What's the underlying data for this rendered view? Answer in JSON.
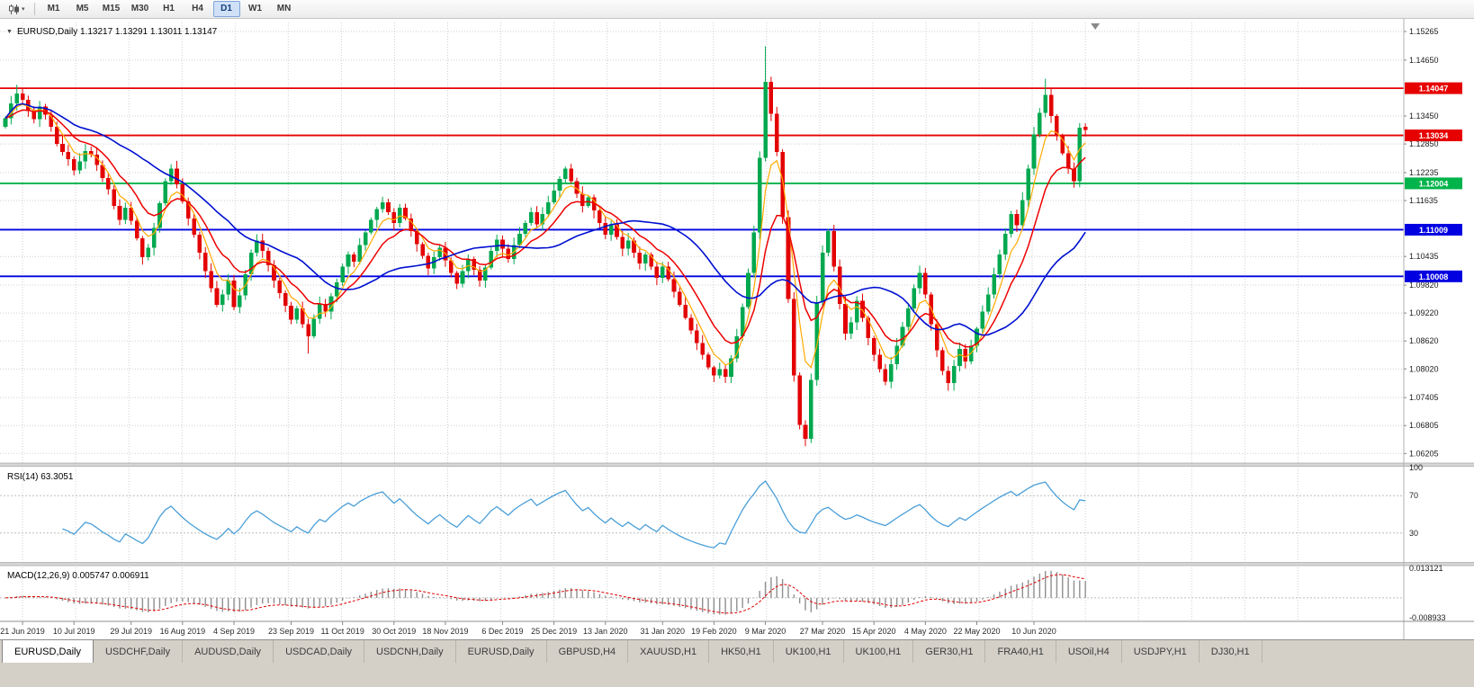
{
  "toolbar": {
    "chart_type_icon": "candlestick-chart",
    "dropdown_caret": "▾",
    "timeframes": [
      "M1",
      "M5",
      "M15",
      "M30",
      "H1",
      "H4",
      "D1",
      "W1",
      "MN"
    ],
    "active_timeframe": "D1"
  },
  "chart": {
    "one_click_icon": "▼",
    "title": "EURUSD,Daily 1.13217 1.13291 1.13011 1.13147",
    "rsi_label": "RSI(14) 63.3051",
    "macd_label": "MACD(12,26,9) 0.005747 0.006911",
    "colors": {
      "bull": "#00a84f",
      "bear": "#e30000",
      "ma_fast": "#ffaa00",
      "ma_mid": "#ee0000",
      "ma_slow": "#0010d0",
      "rsi": "#4a9fd8",
      "macd_hist": "#8f8f8f",
      "macd_signal": "#e00000",
      "grid": "#cfcfcf",
      "axis": "#8f8f8f",
      "line_red": "#e60000",
      "line_green": "#00b34a",
      "line_blue": "#0000e1"
    }
  },
  "chart_data": {
    "type": "candlestick",
    "symbol": "EURUSD",
    "timeframe": "Daily",
    "current_bar_ohlc": {
      "open": 1.13217,
      "high": 1.13291,
      "low": 1.13011,
      "close": 1.13147
    },
    "first_open": 1.1322,
    "y_axis_ticks": [
      "1.15265",
      "1.14650",
      "1.13450",
      "1.12850",
      "1.12235",
      "1.11635",
      "1.10435",
      "1.09820",
      "1.09220",
      "1.08620",
      "1.08020",
      "1.07405",
      "1.06805",
      "1.06205"
    ],
    "x_axis_dates": [
      "21 Jun 2019",
      "10 Jul 2019",
      "29 Jul 2019",
      "16 Aug 2019",
      "4 Sep 2019",
      "23 Sep 2019",
      "11 Oct 2019",
      "30 Oct 2019",
      "18 Nov 2019",
      "6 Dec 2019",
      "25 Dec 2019",
      "13 Jan 2020",
      "31 Jan 2020",
      "19 Feb 2020",
      "9 Mar 2020",
      "27 Mar 2020",
      "15 Apr 2020",
      "4 May 2020",
      "22 May 2020",
      "10 Jun 2020"
    ],
    "horizontal_lines": [
      {
        "price": 1.14047,
        "label": "1.14047",
        "color": "#e60000"
      },
      {
        "price": 1.13034,
        "label": "1.13034",
        "color": "#e60000"
      },
      {
        "price": 1.12004,
        "label": "1.12004",
        "color": "#00b34a"
      },
      {
        "price": 1.11009,
        "label": "1.11009",
        "color": "#0000e1"
      },
      {
        "price": 1.10008,
        "label": "1.10008",
        "color": "#0000e1"
      }
    ],
    "closes": [
      1.134,
      1.1372,
      1.1393,
      1.138,
      1.1356,
      1.1338,
      1.1365,
      1.1348,
      1.1322,
      1.1285,
      1.1268,
      1.1252,
      1.1228,
      1.1248,
      1.127,
      1.1262,
      1.124,
      1.1212,
      1.1188,
      1.1152,
      1.1122,
      1.1148,
      1.112,
      1.1082,
      1.1042,
      1.1062,
      1.1105,
      1.1158,
      1.1205,
      1.1232,
      1.1198,
      1.1162,
      1.1125,
      1.109,
      1.1052,
      1.1012,
      1.0975,
      1.094,
      1.0962,
      1.0992,
      1.0935,
      1.096,
      1.1005,
      1.1052,
      1.1078,
      1.1055,
      1.1025,
      1.0992,
      1.0965,
      1.0938,
      1.0908,
      1.0932,
      1.0898,
      1.0872,
      1.091,
      1.0942,
      1.0925,
      1.0958,
      1.0988,
      1.1022,
      1.1048,
      1.1032,
      1.1068,
      1.1095,
      1.1122,
      1.1145,
      1.116,
      1.1138,
      1.1115,
      1.1148,
      1.1125,
      1.1098,
      1.107,
      1.1045,
      1.1018,
      1.1042,
      1.1062,
      1.1035,
      1.1008,
      1.0985,
      1.1012,
      1.1038,
      1.1015,
      1.0992,
      1.102,
      1.1055,
      1.108,
      1.106,
      1.1038,
      1.1068,
      1.1092,
      1.1115,
      1.1138,
      1.1112,
      1.1135,
      1.116,
      1.1185,
      1.121,
      1.1232,
      1.1205,
      1.1178,
      1.1152,
      1.117,
      1.1142,
      1.1115,
      1.109,
      1.1112,
      1.1085,
      1.106,
      1.1078,
      1.1052,
      1.1028,
      1.1048,
      1.1022,
      1.0998,
      1.1022,
      1.0995,
      1.0968,
      1.094,
      1.0912,
      1.0885,
      1.0858,
      1.0832,
      1.0805,
      1.0788,
      1.0802,
      1.0785,
      1.0825,
      1.0872,
      1.0935,
      1.1008,
      1.1095,
      1.1255,
      1.1418,
      1.135,
      1.1268,
      1.1128,
      1.0952,
      1.0788,
      1.0682,
      1.0652,
      1.0778,
      1.0945,
      1.1052,
      1.1098,
      1.1022,
      1.0942,
      1.0878,
      1.0902,
      1.0948,
      1.0912,
      1.0868,
      1.0832,
      1.0802,
      1.0775,
      1.0812,
      1.0852,
      1.0892,
      1.0932,
      1.0975,
      1.1008,
      1.0962,
      1.0898,
      1.0842,
      1.0798,
      1.0772,
      1.0808,
      1.0845,
      1.0818,
      1.0852,
      1.0888,
      1.0925,
      1.0962,
      1.1005,
      1.1048,
      1.1092,
      1.1135,
      1.111,
      1.1165,
      1.1232,
      1.1305,
      1.1352,
      1.139,
      1.1345,
      1.1302,
      1.1265,
      1.1232,
      1.1205,
      1.132,
      1.13147
    ],
    "wick_overrides": [
      {
        "i": 2,
        "high": 1.1412
      },
      {
        "i": 24,
        "low": 1.1026
      },
      {
        "i": 53,
        "low": 1.0835
      },
      {
        "i": 126,
        "low": 1.0772
      },
      {
        "i": 133,
        "high": 1.1495
      },
      {
        "i": 140,
        "low": 1.0636
      },
      {
        "i": 160,
        "high": 1.1018
      },
      {
        "i": 182,
        "high": 1.1425
      }
    ],
    "moving_averages": [
      {
        "name": "fast",
        "period": 5,
        "type": "ema",
        "color_key": "ma_fast",
        "width": 1.2
      },
      {
        "name": "mid",
        "period": 11,
        "type": "ema",
        "color_key": "ma_mid",
        "width": 1.5
      },
      {
        "name": "slow",
        "period": 26,
        "type": "sma",
        "color_key": "ma_slow",
        "width": 1.6
      }
    ],
    "rsi": {
      "name": "RSI",
      "period_shown": 14,
      "calc_period": 10,
      "value": 63.3051,
      "levels": [
        100,
        70,
        30
      ],
      "level_lines": [
        70,
        30
      ]
    },
    "macd": {
      "name": "MACD",
      "params_shown": "12,26,9",
      "fast": 9,
      "slow": 19,
      "signal": 6,
      "values": [
        0.005747,
        0.006911
      ],
      "axis_max": 0.013121,
      "axis_min": -0.008933,
      "axis_max_label": "0.013121",
      "axis_min_label": "-0.008933"
    }
  },
  "tabs": {
    "active_index": 0,
    "items": [
      "EURUSD,Daily",
      "USDCHF,Daily",
      "AUDUSD,Daily",
      "USDCAD,Daily",
      "USDCNH,Daily",
      "EURUSD,Daily",
      "GBPUSD,H4",
      "XAUUSD,H1",
      "HK50,H1",
      "UK100,H1",
      "UK100,H1",
      "GER30,H1",
      "FRA40,H1",
      "USOil,H4",
      "USDJPY,H1",
      "DJ30,H1"
    ]
  }
}
